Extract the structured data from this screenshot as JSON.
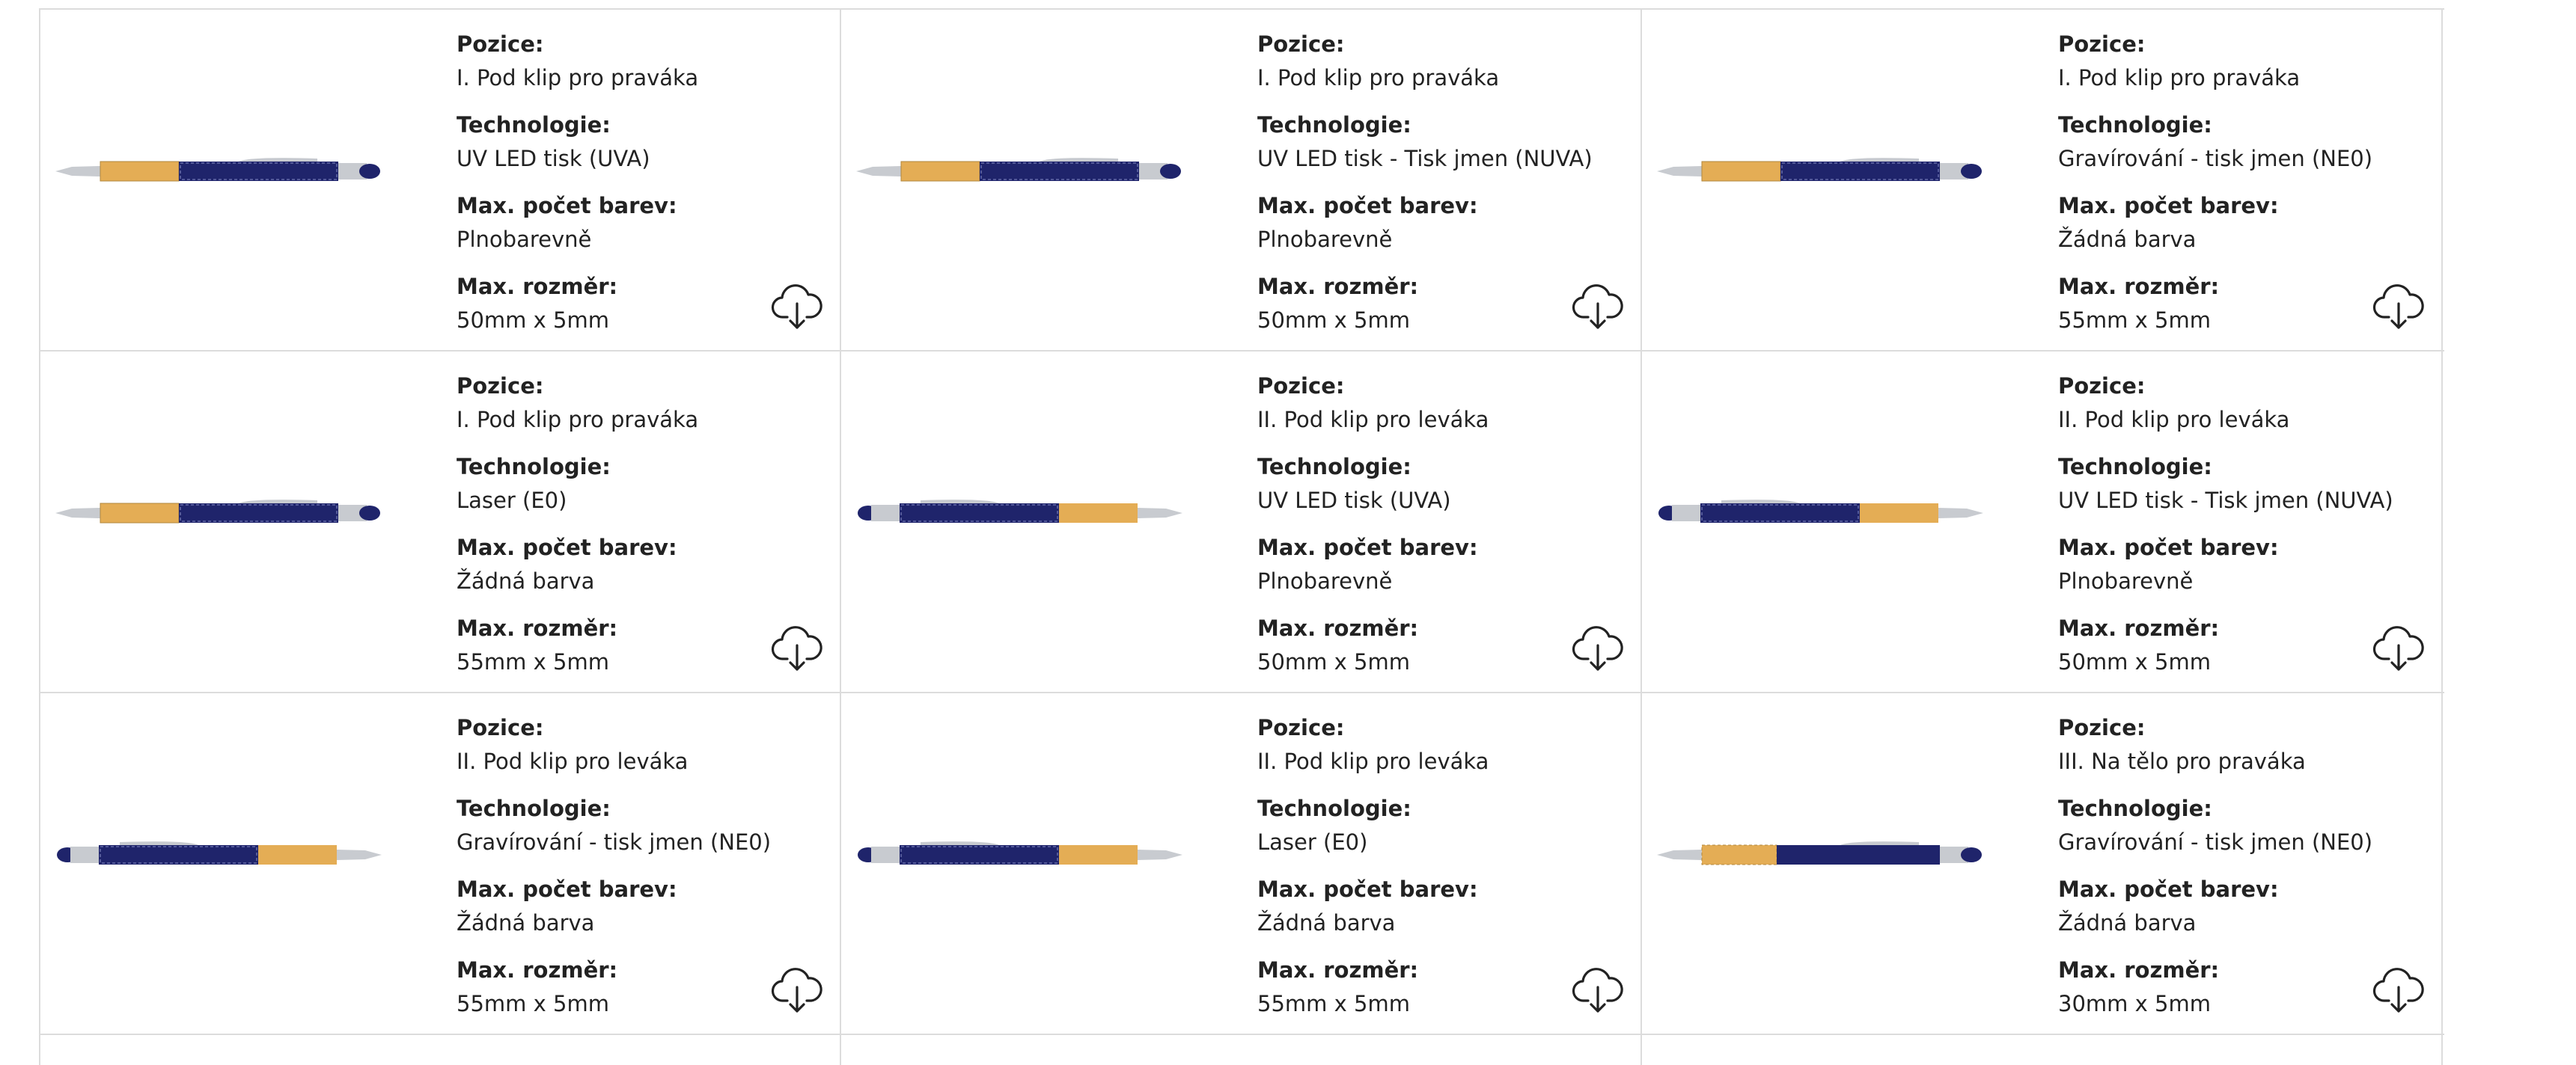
{
  "labels": {
    "position": "Pozice:",
    "technology": "Technologie:",
    "max_colors": "Max. počet barev:",
    "max_size": "Max. rozměr:"
  },
  "colors": {
    "pen_body": "#1f246b",
    "bamboo": "#e4ad55",
    "chrome": "#c8cbd0",
    "border": "#dcdcdc"
  },
  "cells": [
    {
      "position": "I. Pod klip pro praváka",
      "technology": "UV LED tisk (UVA)",
      "max_colors": "Plnobarevně",
      "max_size": "50mm x 5mm",
      "pen_variant": "right",
      "icon": "download-cloud-icon"
    },
    {
      "position": "I. Pod klip pro praváka",
      "technology": "UV LED tisk - Tisk jmen (NUVA)",
      "max_colors": "Plnobarevně",
      "max_size": "50mm x 5mm",
      "pen_variant": "right",
      "icon": "download-cloud-icon"
    },
    {
      "position": "I. Pod klip pro praváka",
      "technology": "Gravírování - tisk jmen (NE0)",
      "max_colors": "Žádná barva",
      "max_size": "55mm x 5mm",
      "pen_variant": "right",
      "icon": "download-cloud-icon"
    },
    {
      "position": "I. Pod klip pro praváka",
      "technology": "Laser (E0)",
      "max_colors": "Žádná barva",
      "max_size": "55mm x 5mm",
      "pen_variant": "right",
      "icon": "download-cloud-icon"
    },
    {
      "position": "II. Pod klip pro leváka",
      "technology": "UV LED tisk (UVA)",
      "max_colors": "Plnobarevně",
      "max_size": "50mm x 5mm",
      "pen_variant": "left",
      "icon": "download-cloud-icon"
    },
    {
      "position": "II. Pod klip pro leváka",
      "technology": "UV LED tisk - Tisk jmen (NUVA)",
      "max_colors": "Plnobarevně",
      "max_size": "50mm x 5mm",
      "pen_variant": "left",
      "icon": "download-cloud-icon"
    },
    {
      "position": "II. Pod klip pro leváka",
      "technology": "Gravírování - tisk jmen (NE0)",
      "max_colors": "Žádná barva",
      "max_size": "55mm x 5mm",
      "pen_variant": "left",
      "icon": "download-cloud-icon"
    },
    {
      "position": "II. Pod klip pro leváka",
      "technology": "Laser (E0)",
      "max_colors": "Žádná barva",
      "max_size": "55mm x 5mm",
      "pen_variant": "left",
      "icon": "download-cloud-icon"
    },
    {
      "position": "III. Na tělo pro praváka",
      "technology": "Gravírování - tisk jmen (NE0)",
      "max_colors": "Žádná barva",
      "max_size": "30mm x 5mm",
      "pen_variant": "body",
      "icon": "download-cloud-icon"
    }
  ]
}
